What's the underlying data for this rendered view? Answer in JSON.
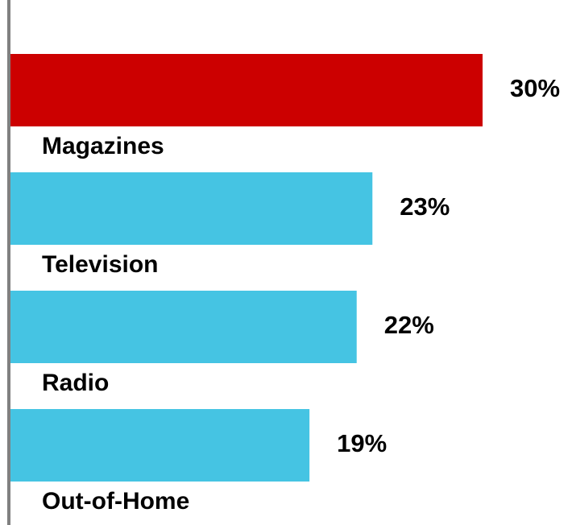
{
  "chart_data": {
    "type": "bar",
    "orientation": "horizontal",
    "categories": [
      "Magazines",
      "Television",
      "Radio",
      "Out-of-Home"
    ],
    "values": [
      30,
      23,
      22,
      19
    ],
    "value_labels": [
      "30%",
      "23%",
      "22%",
      "19%"
    ],
    "unit": "%",
    "title": "",
    "xlabel": "",
    "ylabel": "",
    "xlim": [
      0,
      30
    ],
    "grid": false,
    "legend": "none",
    "colors": {
      "highlight": "#cc0000",
      "default": "#45c4e3",
      "axis": "#808080"
    },
    "highlight_index": 0
  }
}
